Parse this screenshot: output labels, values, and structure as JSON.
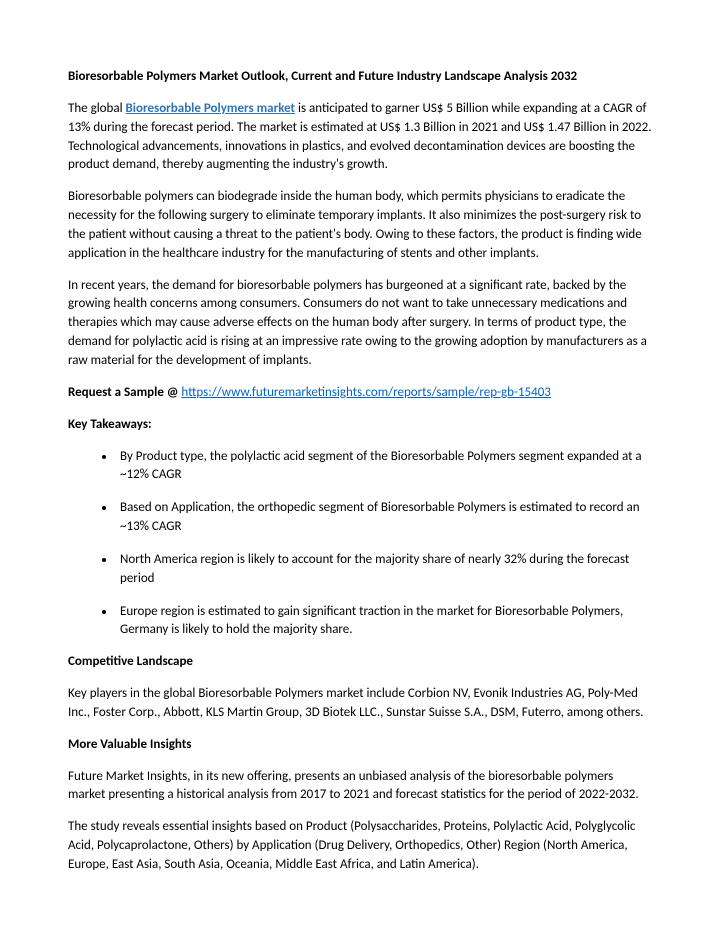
{
  "title": "Bioresorbable Polymers Market Outlook, Current and Future Industry Landscape Analysis 2032",
  "p1a": "The global ",
  "p1link": "Bioresorbable Polymers market",
  "p1b": " is anticipated to garner US$ 5 Billion while expanding at a CAGR of 13% during the forecast period. The market is estimated at US$ 1.3 Billion in 2021 and US$ 1.47 Billion in 2022. Technological advancements, innovations in plastics, and evolved decontamination devices are boosting the product demand, thereby augmenting the industry's growth.",
  "p2": "Bioresorbable polymers can biodegrade inside the human body, which permits physicians to eradicate the necessity for the following surgery to eliminate temporary implants. It also minimizes the post-surgery risk to the patient without causing a threat to the patient's body. Owing to these factors, the product is finding wide application in the healthcare industry for the manufacturing of stents and other implants.",
  "p3": "In recent years, the demand for bioresorbable polymers has burgeoned at a significant rate, backed by the growing health concerns among consumers. Consumers do not want to take unnecessary medications and therapies which may cause adverse effects on the human body after surgery. In terms of product type, the demand for polylactic acid is rising at an impressive rate owing to the growing adoption by manufacturers as a raw material for the development of implants.",
  "sample_label": "Request a Sample @ ",
  "sample_url": "https://www.futuremarketinsights.com/reports/sample/rep-gb-15403",
  "takeaways_head": "Key Takeaways:",
  "takeaways": [
    "By Product type, the polylactic acid segment of the Bioresorbable Polymers segment expanded at a ~12% CAGR",
    "Based on Application, the orthopedic segment of Bioresorbable Polymers is estimated to record an ~13% CAGR",
    "North America region is likely to account for the majority share of nearly 32% during the forecast period",
    "Europe region is estimated to gain significant traction in the market for Bioresorbable Polymers, Germany is likely to hold the majority share."
  ],
  "comp_head": "Competitive Landscape",
  "comp_body": "Key players in the global Bioresorbable Polymers market include Corbion NV, Evonik Industries AG, Poly-Med Inc., Foster Corp., Abbott, KLS Martin Group, 3D Biotek LLC., Sunstar Suisse S.A., DSM, Futerro, among others.",
  "insights_head": "More Valuable Insights",
  "insights_p1": "Future Market Insights, in its new offering, presents an unbiased analysis of the bioresorbable polymers market presenting a historical analysis from 2017 to 2021 and forecast statistics for the period of 2022-2032.",
  "insights_p2": "The study reveals essential insights based on Product (Polysaccharides, Proteins, Polylactic Acid, Polyglycolic Acid, Polycaprolactone, Others) by Application (Drug Delivery, Orthopedics, Other) Region (North America, Europe, East Asia, South Asia, Oceania, Middle East  Africa, and Latin America)."
}
